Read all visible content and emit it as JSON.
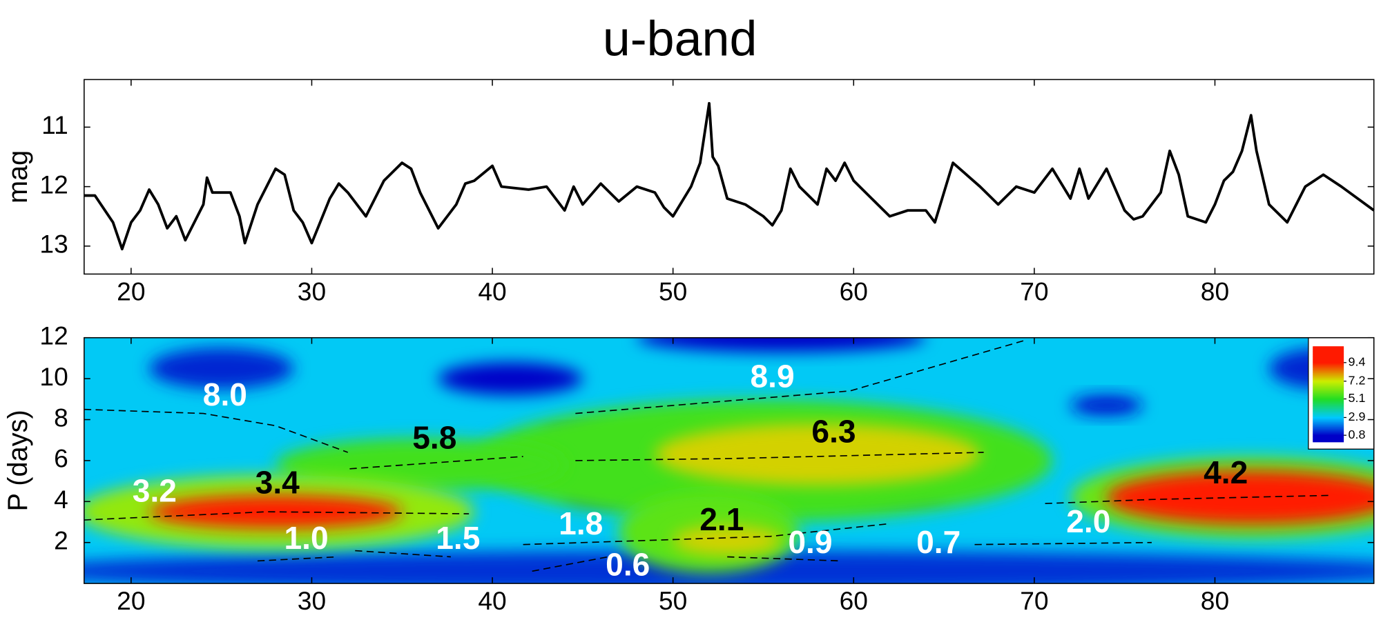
{
  "chart_data": [
    {
      "type": "line",
      "title": "u-band",
      "y_label": "mag",
      "color": "#000000",
      "xlim": [
        17.4,
        88.8
      ],
      "ylim": [
        13.47,
        10.2
      ],
      "xticks": [
        20,
        30,
        40,
        50,
        60,
        70,
        80
      ],
      "yticks": [
        11,
        12,
        13
      ],
      "x": [
        17.4,
        18,
        19,
        19.5,
        20,
        20.5,
        21,
        21.5,
        22,
        22.5,
        23,
        24,
        24.2,
        24.5,
        25.5,
        26,
        26.3,
        27,
        27.5,
        28,
        28.5,
        29,
        29.5,
        30,
        31,
        31.5,
        32,
        33,
        34,
        35,
        35.5,
        36,
        37,
        38,
        38.5,
        39,
        40,
        40.5,
        42,
        43,
        44,
        44.5,
        45,
        46,
        47,
        48,
        49,
        49.5,
        50,
        51,
        51.5,
        52,
        52.2,
        52.5,
        53,
        54,
        55,
        55.5,
        56,
        56.5,
        57,
        58,
        58.5,
        59,
        59.5,
        60,
        61,
        62,
        63,
        64,
        64.5,
        65.5,
        67,
        68,
        69,
        70,
        71,
        72,
        72.5,
        73,
        74,
        75,
        75.5,
        76,
        77,
        77.5,
        78,
        78.5,
        79.5,
        80,
        80.5,
        81,
        81.5,
        82,
        82.3,
        83,
        84,
        85,
        86,
        87,
        88.8
      ],
      "values": [
        12.15,
        12.15,
        12.6,
        13.05,
        12.6,
        12.4,
        12.05,
        12.3,
        12.7,
        12.5,
        12.9,
        12.3,
        11.85,
        12.1,
        12.1,
        12.5,
        12.95,
        12.3,
        12.0,
        11.7,
        11.8,
        12.4,
        12.6,
        12.95,
        12.2,
        11.95,
        12.1,
        12.5,
        11.9,
        11.6,
        11.7,
        12.1,
        12.7,
        12.3,
        11.95,
        11.9,
        11.65,
        12.0,
        12.05,
        12.0,
        12.4,
        12.0,
        12.3,
        11.95,
        12.25,
        12.0,
        12.1,
        12.35,
        12.5,
        12.0,
        11.6,
        10.6,
        11.5,
        11.65,
        12.2,
        12.3,
        12.5,
        12.65,
        12.4,
        11.7,
        12.0,
        12.3,
        11.7,
        11.9,
        11.6,
        11.9,
        12.2,
        12.5,
        12.4,
        12.4,
        12.6,
        11.6,
        12.0,
        12.3,
        12.0,
        12.1,
        11.7,
        12.2,
        11.7,
        12.2,
        11.7,
        12.4,
        12.55,
        12.5,
        12.1,
        11.4,
        11.8,
        12.5,
        12.6,
        12.3,
        11.9,
        11.75,
        11.4,
        10.8,
        11.4,
        12.3,
        12.6,
        12.0,
        11.8,
        12.0,
        12.4
      ]
    },
    {
      "type": "contour",
      "y_label": "P (days)",
      "xlim": [
        17.4,
        88.8
      ],
      "ylim": [
        0,
        12
      ],
      "xticks": [
        20,
        30,
        40,
        50,
        60,
        70,
        80
      ],
      "yticks": [
        2,
        4,
        6,
        8,
        10,
        12
      ],
      "background": 3.0,
      "blobs": [
        {
          "x": 53,
          "y": 0.6,
          "rx": 40,
          "ry": 1.0,
          "value": 1.3
        },
        {
          "x": 41,
          "y": 10,
          "rx": 4,
          "ry": 0.8,
          "value": 0.8
        },
        {
          "x": 25,
          "y": 10.5,
          "rx": 4,
          "ry": 1,
          "value": 1.2
        },
        {
          "x": 56,
          "y": 12,
          "rx": 8,
          "ry": 0.7,
          "value": 0.8
        },
        {
          "x": 74,
          "y": 8.7,
          "rx": 2,
          "ry": 0.5,
          "value": 1.0
        },
        {
          "x": 86,
          "y": 10.5,
          "rx": 3,
          "ry": 1,
          "value": 1.2
        },
        {
          "x": 45,
          "y": 7.2,
          "rx": 2,
          "ry": 0.4,
          "value": 1.0
        },
        {
          "x": 46,
          "y": 4.5,
          "rx": 2,
          "ry": 0.6,
          "value": 1.5
        },
        {
          "x": 62,
          "y": 4.5,
          "rx": 3,
          "ry": 0.5,
          "value": 1.5
        },
        {
          "x": 55,
          "y": 6,
          "rx": 16,
          "ry": 3,
          "value": 5.5
        },
        {
          "x": 36,
          "y": 5.8,
          "rx": 8,
          "ry": 1.3,
          "value": 5.5
        },
        {
          "x": 28,
          "y": 3.5,
          "rx": 11,
          "ry": 1.8,
          "value": 6.5
        },
        {
          "x": 82,
          "y": 4.2,
          "rx": 10,
          "ry": 2,
          "value": 6.0
        },
        {
          "x": 52,
          "y": 2.5,
          "rx": 5,
          "ry": 2,
          "value": 5.8
        },
        {
          "x": 58,
          "y": 6.3,
          "rx": 9,
          "ry": 1.5,
          "value": 7.5
        },
        {
          "x": 53,
          "y": 2.1,
          "rx": 3,
          "ry": 0.7,
          "value": 7.5
        },
        {
          "x": 28,
          "y": 3.5,
          "rx": 7,
          "ry": 0.8,
          "value": 9.4
        },
        {
          "x": 82,
          "y": 4.2,
          "rx": 8,
          "ry": 1.3,
          "value": 9.4
        }
      ],
      "ridges": [
        {
          "x": [
            17.4,
            24,
            28,
            32
          ],
          "y": [
            8.5,
            8.3,
            7.7,
            6.4
          ]
        },
        {
          "x": [
            32.1,
            41.7
          ],
          "y": [
            5.6,
            6.2
          ]
        },
        {
          "x": [
            44.6,
            53.2,
            67.2
          ],
          "y": [
            6.0,
            6.1,
            6.4
          ]
        },
        {
          "x": [
            44.6,
            59.8,
            69.6
          ],
          "y": [
            8.3,
            9.4,
            11.9
          ]
        },
        {
          "x": [
            17.4,
            27.5,
            38.7
          ],
          "y": [
            3.1,
            3.5,
            3.4
          ]
        },
        {
          "x": [
            27,
            31.4
          ],
          "y": [
            1.1,
            1.3
          ]
        },
        {
          "x": [
            32.4,
            37.7
          ],
          "y": [
            1.6,
            1.3
          ]
        },
        {
          "x": [
            41.7,
            55.4,
            61.8
          ],
          "y": [
            1.9,
            2.3,
            2.9
          ]
        },
        {
          "x": [
            42.2,
            47
          ],
          "y": [
            0.6,
            1.4
          ]
        },
        {
          "x": [
            53,
            59.3
          ],
          "y": [
            1.3,
            1.1
          ]
        },
        {
          "x": [
            70.6,
            76.5,
            86.3
          ],
          "y": [
            3.9,
            4.1,
            4.3
          ]
        },
        {
          "x": [
            66.7,
            76.5
          ],
          "y": [
            1.9,
            2.0
          ]
        }
      ],
      "annotations": [
        {
          "text": "8.0",
          "x": 25.2,
          "y": 9.1,
          "color": "#ffffff"
        },
        {
          "text": "8.9",
          "x": 55.5,
          "y": 10.0,
          "color": "#ffffff"
        },
        {
          "text": "5.8",
          "x": 36.8,
          "y": 7.0,
          "color": "#000000"
        },
        {
          "text": "6.3",
          "x": 58.9,
          "y": 7.3,
          "color": "#000000"
        },
        {
          "text": "3.2",
          "x": 21.3,
          "y": 4.4,
          "color": "#ffffff"
        },
        {
          "text": "3.4",
          "x": 28.1,
          "y": 4.8,
          "color": "#000000"
        },
        {
          "text": "1.0",
          "x": 29.7,
          "y": 2.1,
          "color": "#ffffff"
        },
        {
          "text": "1.5",
          "x": 38.1,
          "y": 2.1,
          "color": "#ffffff"
        },
        {
          "text": "1.8",
          "x": 44.9,
          "y": 2.8,
          "color": "#ffffff"
        },
        {
          "text": "2.1",
          "x": 52.7,
          "y": 3.0,
          "color": "#000000"
        },
        {
          "text": "0.9",
          "x": 57.6,
          "y": 1.9,
          "color": "#ffffff"
        },
        {
          "text": "0.7",
          "x": 64.7,
          "y": 1.9,
          "color": "#ffffff"
        },
        {
          "text": "0.6",
          "x": 47.5,
          "y": 0.8,
          "color": "#ffffff"
        },
        {
          "text": "2.0",
          "x": 73,
          "y": 2.9,
          "color": "#ffffff"
        },
        {
          "text": "4.2",
          "x": 80.6,
          "y": 5.3,
          "color": "#000000"
        }
      ],
      "colorbar": {
        "lim": [
          0,
          11.3
        ],
        "ticks": [
          0.8,
          2.9,
          5.1,
          7.2,
          9.4
        ],
        "colors": [
          "#0000c8",
          "#00c8ff",
          "#22dd22",
          "#ccee00",
          "#ff1a00"
        ]
      }
    }
  ]
}
